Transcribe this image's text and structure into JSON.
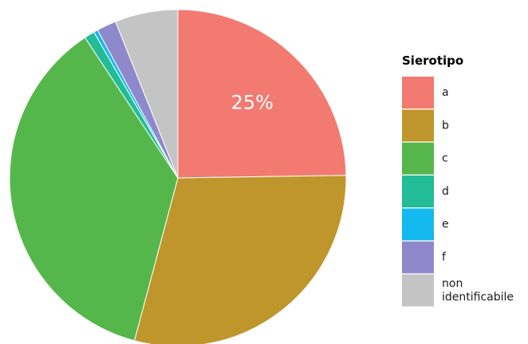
{
  "chart_data": {
    "type": "pie",
    "legend_title": "Sierotipo",
    "legend_position": "right",
    "start_angle_deg": 0,
    "direction": "clockwise",
    "slices": [
      {
        "label": "a",
        "value": 25.0,
        "color": "#F27A70",
        "data_label": "25%"
      },
      {
        "label": "b",
        "value": 29.7,
        "color": "#BF962B",
        "data_label": ""
      },
      {
        "label": "c",
        "value": 36.9,
        "color": "#55B74B",
        "data_label": ""
      },
      {
        "label": "d",
        "value": 1.0,
        "color": "#22BC96",
        "data_label": ""
      },
      {
        "label": "e",
        "value": 0.4,
        "color": "#14B9EF",
        "data_label": ""
      },
      {
        "label": "f",
        "value": 1.9,
        "color": "#8F89CB",
        "data_label": ""
      },
      {
        "label": "non identificabile",
        "value": 6.1,
        "color": "#C4C4C4",
        "data_label": ""
      }
    ],
    "legend": [
      {
        "lines": [
          "a"
        ],
        "color": "#F27A70"
      },
      {
        "lines": [
          "b"
        ],
        "color": "#BF962B"
      },
      {
        "lines": [
          "c"
        ],
        "color": "#55B74B"
      },
      {
        "lines": [
          "d"
        ],
        "color": "#22BC96"
      },
      {
        "lines": [
          "e"
        ],
        "color": "#14B9EF"
      },
      {
        "lines": [
          "f"
        ],
        "color": "#8F89CB"
      },
      {
        "lines": [
          "non",
          "identificabile"
        ],
        "color": "#C4C4C4"
      }
    ]
  }
}
